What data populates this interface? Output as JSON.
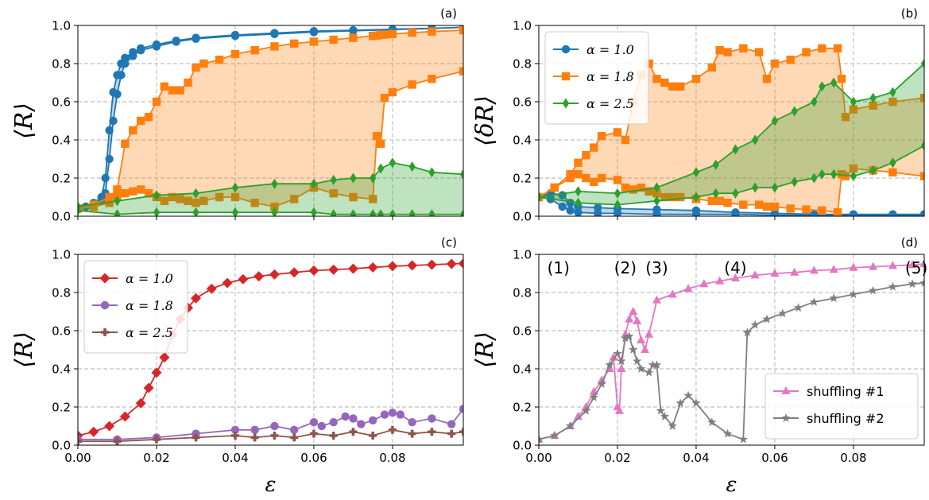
{
  "colors": {
    "blue": "#1f77b4",
    "orange": "#ff7f0e",
    "green": "#2ca02c",
    "red": "#d62728",
    "purple": "#9467bd",
    "brown": "#8c564b",
    "pink": "#e377c2",
    "gray": "#7f7f7f",
    "grid": "#b0b0b0"
  },
  "chart_data": [
    {
      "panel": "a",
      "panel_label": "(a)",
      "type": "line",
      "ylabel": "⟨R⟩",
      "xlabel": "",
      "xlim": [
        0,
        0.098
      ],
      "ylim": [
        0,
        1.0
      ],
      "grid": true,
      "legend": null,
      "x_ticks": [
        "0.00",
        "0.02",
        "0.04",
        "0.06",
        "0.08"
      ],
      "x_tick_labels_visible": false,
      "y_ticks": [
        "0.0",
        "0.2",
        "0.4",
        "0.6",
        "0.8",
        "1.0"
      ],
      "bands": [
        {
          "color": "blue",
          "marker": "o",
          "x": [
            0.0,
            0.002,
            0.004,
            0.006,
            0.007,
            0.008,
            0.009,
            0.01,
            0.011,
            0.012,
            0.014,
            0.016,
            0.02,
            0.025,
            0.03,
            0.04,
            0.05,
            0.06,
            0.07,
            0.08,
            0.09,
            0.098
          ],
          "upper": [
            0.04,
            0.05,
            0.07,
            0.1,
            0.2,
            0.45,
            0.65,
            0.74,
            0.8,
            0.83,
            0.86,
            0.88,
            0.9,
            0.92,
            0.935,
            0.95,
            0.96,
            0.97,
            0.975,
            0.98,
            0.985,
            0.99
          ],
          "lower": [
            0.04,
            0.05,
            0.06,
            0.08,
            0.12,
            0.3,
            0.5,
            0.64,
            0.74,
            0.8,
            0.84,
            0.87,
            0.89,
            0.915,
            0.93,
            0.945,
            0.955,
            0.965,
            0.972,
            0.978,
            0.984,
            0.99
          ]
        },
        {
          "color": "orange",
          "marker": "s",
          "x": [
            0.0,
            0.004,
            0.008,
            0.01,
            0.012,
            0.014,
            0.016,
            0.018,
            0.02,
            0.022,
            0.024,
            0.026,
            0.028,
            0.03,
            0.032,
            0.036,
            0.04,
            0.045,
            0.05,
            0.055,
            0.06,
            0.065,
            0.07,
            0.075,
            0.076,
            0.077,
            0.078,
            0.08,
            0.085,
            0.09,
            0.098
          ],
          "upper": [
            0.04,
            0.06,
            0.1,
            0.14,
            0.38,
            0.45,
            0.5,
            0.52,
            0.6,
            0.68,
            0.66,
            0.66,
            0.7,
            0.78,
            0.8,
            0.82,
            0.85,
            0.87,
            0.89,
            0.905,
            0.915,
            0.925,
            0.935,
            0.945,
            0.947,
            0.95,
            0.952,
            0.955,
            0.962,
            0.968,
            0.975
          ],
          "lower": [
            0.04,
            0.05,
            0.07,
            0.1,
            0.12,
            0.13,
            0.14,
            0.12,
            0.1,
            0.08,
            0.1,
            0.09,
            0.08,
            0.07,
            0.08,
            0.1,
            0.1,
            0.07,
            0.05,
            0.09,
            0.15,
            0.12,
            0.1,
            0.09,
            0.42,
            0.38,
            0.62,
            0.65,
            0.69,
            0.72,
            0.76
          ]
        },
        {
          "color": "green",
          "marker": "d",
          "x": [
            0.0,
            0.01,
            0.02,
            0.03,
            0.04,
            0.05,
            0.06,
            0.065,
            0.07,
            0.075,
            0.077,
            0.08,
            0.085,
            0.09,
            0.098
          ],
          "upper": [
            0.05,
            0.08,
            0.11,
            0.12,
            0.15,
            0.17,
            0.17,
            0.19,
            0.2,
            0.2,
            0.25,
            0.28,
            0.26,
            0.23,
            0.22
          ],
          "lower": [
            0.03,
            0.01,
            0.02,
            0.02,
            0.02,
            0.02,
            0.02,
            0.01,
            0.01,
            0.01,
            0.01,
            0.01,
            0.01,
            0.01,
            0.01
          ]
        }
      ]
    },
    {
      "panel": "b",
      "panel_label": "(b)",
      "type": "line",
      "ylabel": "⟨δR⟩",
      "xlabel": "",
      "xlim": [
        0,
        0.098
      ],
      "ylim": [
        0,
        1.0
      ],
      "grid": true,
      "legend": "upper-left",
      "x_ticks": [
        "0.00",
        "0.02",
        "0.04",
        "0.06",
        "0.08"
      ],
      "x_tick_labels_visible": false,
      "y_ticks": [
        "0.0",
        "0.2",
        "0.4",
        "0.6",
        "0.8",
        "1.0"
      ],
      "legend_entries": [
        {
          "label": "α = 1.0",
          "color": "blue",
          "marker": "o"
        },
        {
          "label": "α = 1.8",
          "color": "orange",
          "marker": "s"
        },
        {
          "label": "α = 2.5",
          "color": "green",
          "marker": "d"
        }
      ],
      "bands": [
        {
          "color": "blue",
          "marker": "o",
          "x": [
            0.0,
            0.003,
            0.006,
            0.008,
            0.01,
            0.015,
            0.02,
            0.03,
            0.04,
            0.05,
            0.06,
            0.07,
            0.08,
            0.09,
            0.098
          ],
          "upper": [
            0.1,
            0.12,
            0.11,
            0.07,
            0.05,
            0.045,
            0.04,
            0.035,
            0.03,
            0.02,
            0.015,
            0.01,
            0.01,
            0.01,
            0.01
          ],
          "lower": [
            0.1,
            0.09,
            0.05,
            0.03,
            0.02,
            0.015,
            0.015,
            0.01,
            0.01,
            0.01,
            0.005,
            0.005,
            0.005,
            0.005,
            0.005
          ]
        },
        {
          "color": "orange",
          "marker": "s",
          "x": [
            0.0,
            0.004,
            0.008,
            0.01,
            0.012,
            0.014,
            0.016,
            0.02,
            0.022,
            0.024,
            0.026,
            0.028,
            0.03,
            0.032,
            0.034,
            0.036,
            0.04,
            0.044,
            0.046,
            0.048,
            0.052,
            0.056,
            0.058,
            0.06,
            0.064,
            0.068,
            0.072,
            0.076,
            0.077,
            0.078,
            0.08,
            0.085,
            0.09,
            0.098
          ],
          "upper": [
            0.1,
            0.15,
            0.22,
            0.28,
            0.32,
            0.36,
            0.42,
            0.44,
            0.4,
            0.6,
            0.74,
            0.8,
            0.72,
            0.7,
            0.68,
            0.68,
            0.72,
            0.78,
            0.87,
            0.86,
            0.88,
            0.86,
            0.72,
            0.8,
            0.82,
            0.86,
            0.88,
            0.88,
            0.72,
            0.52,
            0.56,
            0.58,
            0.6,
            0.62
          ],
          "lower": [
            0.1,
            0.15,
            0.2,
            0.22,
            0.2,
            0.18,
            0.2,
            0.19,
            0.15,
            0.14,
            0.15,
            0.13,
            0.12,
            0.1,
            0.1,
            0.1,
            0.09,
            0.08,
            0.08,
            0.07,
            0.06,
            0.06,
            0.05,
            0.05,
            0.04,
            0.035,
            0.03,
            0.02,
            0.22,
            0.21,
            0.25,
            0.24,
            0.23,
            0.21
          ]
        },
        {
          "color": "green",
          "marker": "d",
          "x": [
            0.0,
            0.01,
            0.02,
            0.03,
            0.04,
            0.045,
            0.05,
            0.055,
            0.06,
            0.065,
            0.07,
            0.072,
            0.075,
            0.08,
            0.085,
            0.09,
            0.098
          ],
          "upper": [
            0.1,
            0.13,
            0.12,
            0.15,
            0.23,
            0.27,
            0.35,
            0.4,
            0.5,
            0.55,
            0.6,
            0.68,
            0.7,
            0.6,
            0.62,
            0.65,
            0.8
          ],
          "lower": [
            0.1,
            0.07,
            0.06,
            0.08,
            0.1,
            0.12,
            0.12,
            0.15,
            0.15,
            0.18,
            0.2,
            0.22,
            0.22,
            0.21,
            0.24,
            0.28,
            0.37
          ]
        }
      ]
    },
    {
      "panel": "c",
      "panel_label": "(c)",
      "type": "line",
      "ylabel": "⟨R⟩",
      "xlabel": "ε",
      "xlim": [
        0,
        0.098
      ],
      "ylim": [
        0,
        1.0
      ],
      "grid": true,
      "legend": "upper-left",
      "x_ticks": [
        "0.00",
        "0.02",
        "0.04",
        "0.06",
        "0.08"
      ],
      "x_tick_labels_visible": true,
      "y_ticks": [
        "0.0",
        "0.2",
        "0.4",
        "0.6",
        "0.8",
        "1.0"
      ],
      "legend_entries": [
        {
          "label": "α = 1.0",
          "color": "red",
          "marker": "D"
        },
        {
          "label": "α = 1.8",
          "color": "purple",
          "marker": "o"
        },
        {
          "label": "α = 2.5",
          "color": "brown",
          "marker": "P"
        }
      ],
      "series": [
        {
          "name": "α = 1.0",
          "color": "red",
          "marker": "D",
          "x": [
            0.0,
            0.004,
            0.008,
            0.012,
            0.016,
            0.018,
            0.02,
            0.022,
            0.024,
            0.026,
            0.028,
            0.03,
            0.034,
            0.038,
            0.042,
            0.046,
            0.05,
            0.055,
            0.06,
            0.065,
            0.07,
            0.075,
            0.08,
            0.085,
            0.09,
            0.095,
            0.098
          ],
          "y": [
            0.05,
            0.07,
            0.1,
            0.15,
            0.22,
            0.3,
            0.38,
            0.46,
            0.58,
            0.66,
            0.72,
            0.77,
            0.82,
            0.85,
            0.87,
            0.885,
            0.895,
            0.905,
            0.915,
            0.92,
            0.925,
            0.932,
            0.938,
            0.942,
            0.946,
            0.95,
            0.952
          ]
        },
        {
          "name": "α = 1.8",
          "color": "purple",
          "marker": "o",
          "x": [
            0.0,
            0.01,
            0.02,
            0.03,
            0.04,
            0.045,
            0.05,
            0.055,
            0.06,
            0.062,
            0.065,
            0.068,
            0.07,
            0.072,
            0.075,
            0.078,
            0.08,
            0.082,
            0.085,
            0.09,
            0.095,
            0.098
          ],
          "y": [
            0.03,
            0.03,
            0.04,
            0.06,
            0.08,
            0.08,
            0.1,
            0.08,
            0.12,
            0.1,
            0.12,
            0.15,
            0.14,
            0.11,
            0.13,
            0.16,
            0.17,
            0.16,
            0.12,
            0.14,
            0.11,
            0.19
          ]
        },
        {
          "name": "α = 2.5",
          "color": "brown",
          "marker": "P",
          "x": [
            0.0,
            0.01,
            0.02,
            0.03,
            0.04,
            0.045,
            0.05,
            0.055,
            0.06,
            0.065,
            0.07,
            0.075,
            0.08,
            0.085,
            0.09,
            0.095,
            0.098
          ],
          "y": [
            0.02,
            0.02,
            0.03,
            0.04,
            0.05,
            0.04,
            0.05,
            0.04,
            0.06,
            0.05,
            0.07,
            0.05,
            0.08,
            0.06,
            0.07,
            0.06,
            0.07
          ]
        }
      ]
    },
    {
      "panel": "d",
      "panel_label": "(d)",
      "type": "line",
      "ylabel": "⟨R⟩",
      "xlabel": "ε",
      "xlim": [
        0,
        0.098
      ],
      "ylim": [
        0,
        1.0
      ],
      "grid": true,
      "legend": "lower-right",
      "x_ticks": [
        "0.00",
        "0.02",
        "0.04",
        "0.06",
        "0.08"
      ],
      "x_tick_labels_visible": true,
      "y_ticks": [
        "0.0",
        "0.2",
        "0.4",
        "0.6",
        "0.8",
        "1.0"
      ],
      "annotations": [
        {
          "text": "(1)",
          "x": 0.005,
          "y": 0.93
        },
        {
          "text": "(2)",
          "x": 0.022,
          "y": 0.93
        },
        {
          "text": "(3)",
          "x": 0.03,
          "y": 0.93
        },
        {
          "text": "(4)",
          "x": 0.05,
          "y": 0.93
        },
        {
          "text": "(5)",
          "x": 0.096,
          "y": 0.93
        }
      ],
      "legend_entries": [
        {
          "label": "shuffling #1",
          "color": "pink",
          "marker": "^"
        },
        {
          "label": "shuffling #2",
          "color": "gray",
          "marker": "*"
        }
      ],
      "series": [
        {
          "name": "shuffling #1",
          "color": "pink",
          "marker": "^",
          "x": [
            0.0,
            0.004,
            0.008,
            0.01,
            0.012,
            0.014,
            0.016,
            0.018,
            0.019,
            0.02,
            0.0205,
            0.021,
            0.022,
            0.023,
            0.024,
            0.025,
            0.026,
            0.027,
            0.028,
            0.03,
            0.034,
            0.038,
            0.042,
            0.046,
            0.05,
            0.055,
            0.06,
            0.065,
            0.07,
            0.075,
            0.08,
            0.085,
            0.09,
            0.095,
            0.098
          ],
          "y": [
            0.03,
            0.05,
            0.1,
            0.15,
            0.2,
            0.28,
            0.34,
            0.4,
            0.46,
            0.2,
            0.18,
            0.4,
            0.58,
            0.66,
            0.7,
            0.65,
            0.55,
            0.5,
            0.58,
            0.76,
            0.79,
            0.82,
            0.845,
            0.86,
            0.875,
            0.89,
            0.9,
            0.905,
            0.915,
            0.92,
            0.93,
            0.935,
            0.94,
            0.945,
            0.95
          ]
        },
        {
          "name": "shuffling #2",
          "color": "gray",
          "marker": "*",
          "x": [
            0.0,
            0.004,
            0.008,
            0.012,
            0.014,
            0.016,
            0.018,
            0.02,
            0.021,
            0.022,
            0.023,
            0.024,
            0.025,
            0.026,
            0.028,
            0.029,
            0.03,
            0.031,
            0.032,
            0.034,
            0.036,
            0.038,
            0.04,
            0.044,
            0.048,
            0.052,
            0.053,
            0.055,
            0.058,
            0.062,
            0.066,
            0.07,
            0.075,
            0.08,
            0.085,
            0.09,
            0.095,
            0.098
          ],
          "y": [
            0.03,
            0.05,
            0.1,
            0.18,
            0.25,
            0.32,
            0.42,
            0.48,
            0.44,
            0.56,
            0.57,
            0.5,
            0.44,
            0.4,
            0.38,
            0.42,
            0.42,
            0.18,
            0.15,
            0.1,
            0.22,
            0.26,
            0.22,
            0.12,
            0.06,
            0.03,
            0.59,
            0.63,
            0.66,
            0.69,
            0.72,
            0.75,
            0.77,
            0.79,
            0.81,
            0.83,
            0.845,
            0.85
          ]
        }
      ]
    }
  ]
}
